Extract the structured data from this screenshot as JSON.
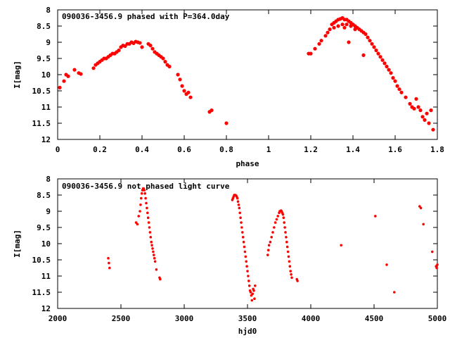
{
  "chart_data": [
    {
      "type": "scatter",
      "title": "090036-3456.9 phased with P=364.0day",
      "xlabel": "phase",
      "ylabel": "I[mag]",
      "xlim": [
        0,
        1.8
      ],
      "ylim": [
        12,
        8
      ],
      "y_inverted": true,
      "xticks": [
        "0",
        "0.2",
        "0.4",
        "0.6",
        "0.8",
        "1",
        "1.2",
        "1.4",
        "1.6",
        "1.8"
      ],
      "yticks": [
        "8",
        "8.5",
        "9",
        "9.5",
        "10",
        "10.5",
        "11",
        "11.5",
        "12"
      ],
      "marker_color": "#ff0000",
      "series": [
        {
          "x": [
            0.01,
            0.03,
            0.04,
            0.05,
            0.08,
            0.1,
            0.11,
            0.17,
            0.18,
            0.19,
            0.2,
            0.21,
            0.22,
            0.23,
            0.24,
            0.25,
            0.26,
            0.27,
            0.28,
            0.29,
            0.3,
            0.31,
            0.32,
            0.33,
            0.34,
            0.35,
            0.36,
            0.37,
            0.38,
            0.39,
            0.4,
            0.43,
            0.44,
            0.45,
            0.46,
            0.47,
            0.48,
            0.49,
            0.5,
            0.51,
            0.52,
            0.53,
            0.57,
            0.58,
            0.59,
            0.6,
            0.61,
            0.62,
            0.63,
            0.72,
            0.73,
            0.8,
            1.19,
            1.2,
            1.22,
            1.24,
            1.25,
            1.27,
            1.28,
            1.29,
            1.3,
            1.31,
            1.32,
            1.33,
            1.34,
            1.35,
            1.36,
            1.37,
            1.38,
            1.39,
            1.4,
            1.41,
            1.42,
            1.43,
            1.44,
            1.45,
            1.46,
            1.47,
            1.48,
            1.49,
            1.5,
            1.51,
            1.52,
            1.53,
            1.54,
            1.55,
            1.56,
            1.57,
            1.58,
            1.59,
            1.6,
            1.61,
            1.62,
            1.63,
            1.65,
            1.67,
            1.68,
            1.69,
            1.7,
            1.71,
            1.72,
            1.73,
            1.74,
            1.75,
            1.76,
            1.77,
            1.78,
            1.31,
            1.33,
            1.35,
            1.37,
            1.39,
            1.41,
            1.36,
            1.38,
            1.45
          ],
          "y": [
            10.4,
            10.2,
            10.0,
            10.05,
            9.85,
            9.95,
            9.98,
            9.8,
            9.7,
            9.65,
            9.6,
            9.55,
            9.5,
            9.5,
            9.45,
            9.4,
            9.35,
            9.35,
            9.3,
            9.25,
            9.15,
            9.1,
            9.12,
            9.05,
            9.05,
            9.0,
            9.03,
            8.98,
            9.0,
            9.02,
            9.15,
            9.05,
            9.1,
            9.2,
            9.3,
            9.35,
            9.4,
            9.45,
            9.5,
            9.6,
            9.7,
            9.75,
            10.0,
            10.15,
            10.35,
            10.5,
            10.6,
            10.55,
            10.7,
            11.15,
            11.1,
            11.5,
            9.35,
            9.35,
            9.2,
            9.05,
            8.95,
            8.8,
            8.7,
            8.6,
            8.45,
            8.4,
            8.35,
            8.3,
            8.28,
            8.25,
            8.3,
            8.3,
            8.35,
            8.4,
            8.45,
            8.5,
            8.55,
            8.6,
            8.65,
            8.7,
            8.75,
            8.85,
            8.95,
            9.05,
            9.15,
            9.25,
            9.35,
            9.45,
            9.55,
            9.65,
            9.75,
            9.85,
            9.95,
            10.1,
            10.2,
            10.35,
            10.45,
            10.55,
            10.7,
            10.9,
            11.0,
            11.05,
            10.75,
            11.0,
            11.1,
            11.3,
            11.4,
            11.2,
            11.5,
            11.1,
            11.7,
            8.55,
            8.5,
            8.45,
            8.45,
            8.5,
            8.6,
            8.55,
            9.0,
            9.4
          ]
        }
      ]
    },
    {
      "type": "scatter",
      "title": "090036-3456.9 not phased light curve",
      "xlabel": "hjd0",
      "ylabel": "I[mag]",
      "xlim": [
        2000,
        5000
      ],
      "ylim": [
        12,
        8
      ],
      "y_inverted": true,
      "xticks": [
        "2000",
        "2500",
        "3000",
        "3500",
        "4000",
        "4500",
        "5000"
      ],
      "yticks": [
        "8",
        "8.5",
        "9",
        "9.5",
        "10",
        "10.5",
        "11",
        "11.5",
        "12"
      ],
      "marker_color": "#ff0000",
      "series": [
        {
          "x": [
            2400,
            2405,
            2410,
            2620,
            2630,
            2640,
            2650,
            2655,
            2660,
            2665,
            2670,
            2675,
            2680,
            2685,
            2690,
            2695,
            2700,
            2705,
            2710,
            2715,
            2720,
            2725,
            2730,
            2735,
            2740,
            2745,
            2750,
            2755,
            2760,
            2765,
            2770,
            2780,
            2805,
            2810,
            3380,
            3385,
            3390,
            3395,
            3400,
            3405,
            3410,
            3415,
            3420,
            3425,
            3430,
            3435,
            3440,
            3445,
            3450,
            3455,
            3460,
            3465,
            3470,
            3475,
            3480,
            3485,
            3490,
            3495,
            3500,
            3505,
            3510,
            3515,
            3520,
            3525,
            3530,
            3535,
            3540,
            3545,
            3550,
            3555,
            3560,
            3660,
            3665,
            3670,
            3680,
            3690,
            3700,
            3710,
            3720,
            3730,
            3740,
            3750,
            3755,
            3760,
            3765,
            3770,
            3775,
            3780,
            3785,
            3790,
            3795,
            3800,
            3805,
            3810,
            3815,
            3820,
            3825,
            3830,
            3835,
            3840,
            3845,
            3850,
            3890,
            3895,
            4240,
            4510,
            4600,
            4660,
            4860,
            4870,
            4890,
            4960,
            4990,
            4995,
            5000
          ],
          "y": [
            10.45,
            10.6,
            10.75,
            9.35,
            9.4,
            9.15,
            9.0,
            8.8,
            8.6,
            8.45,
            8.35,
            8.3,
            8.3,
            8.35,
            8.45,
            8.6,
            8.75,
            8.9,
            9.05,
            9.2,
            9.35,
            9.5,
            9.65,
            9.8,
            9.95,
            10.05,
            10.15,
            10.25,
            10.35,
            10.45,
            10.55,
            10.8,
            11.05,
            11.1,
            8.65,
            8.6,
            8.55,
            8.5,
            8.5,
            8.5,
            8.52,
            8.55,
            8.6,
            8.7,
            8.8,
            8.9,
            9.05,
            9.2,
            9.35,
            9.5,
            9.65,
            9.8,
            9.95,
            10.1,
            10.25,
            10.4,
            10.55,
            10.7,
            10.85,
            11.0,
            11.15,
            11.3,
            11.45,
            11.5,
            11.6,
            11.75,
            11.55,
            11.4,
            11.45,
            11.7,
            11.3,
            10.35,
            10.2,
            10.05,
            9.95,
            9.8,
            9.65,
            9.5,
            9.35,
            9.25,
            9.15,
            9.05,
            9.0,
            9.0,
            8.98,
            9.0,
            9.05,
            9.1,
            9.2,
            9.35,
            9.5,
            9.65,
            9.8,
            9.95,
            10.1,
            10.25,
            10.4,
            10.55,
            10.7,
            10.85,
            10.95,
            11.05,
            11.1,
            11.15,
            10.05,
            9.15,
            10.65,
            11.5,
            8.85,
            8.9,
            9.4,
            10.25,
            10.7,
            10.75,
            10.65
          ]
        }
      ]
    }
  ]
}
